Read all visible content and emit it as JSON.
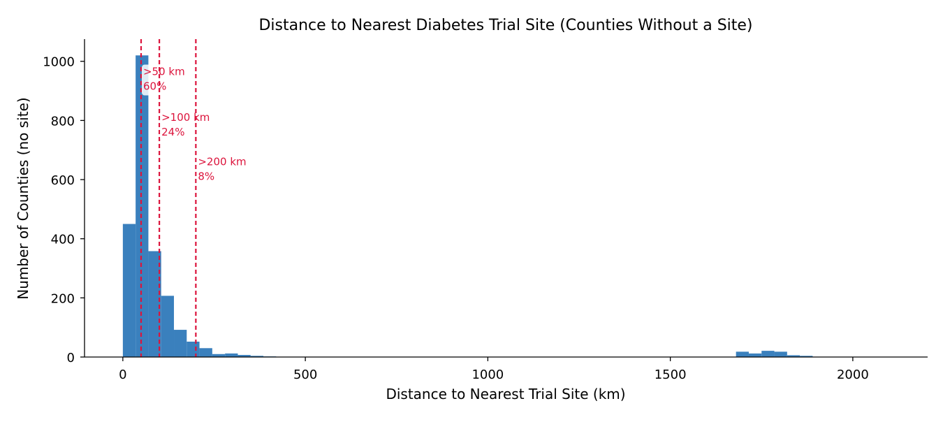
{
  "chart_data": {
    "type": "bar",
    "title": "Distance to Nearest Diabetes Trial Site (Counties Without a Site)",
    "xlabel": "Distance to Nearest Trial Site (km)",
    "ylabel": "Number of Counties (no site)",
    "xlim": [
      -105,
      2205
    ],
    "ylim": [
      0,
      1075
    ],
    "xticks": [
      0,
      500,
      1000,
      1500,
      2000
    ],
    "yticks": [
      0,
      200,
      400,
      600,
      800,
      1000
    ],
    "bin_width": 35,
    "bins": [
      {
        "start": 0,
        "count": 450
      },
      {
        "start": 35,
        "count": 1020
      },
      {
        "start": 70,
        "count": 358
      },
      {
        "start": 105,
        "count": 207
      },
      {
        "start": 140,
        "count": 92
      },
      {
        "start": 175,
        "count": 52
      },
      {
        "start": 210,
        "count": 30
      },
      {
        "start": 245,
        "count": 10
      },
      {
        "start": 280,
        "count": 12
      },
      {
        "start": 315,
        "count": 7
      },
      {
        "start": 350,
        "count": 4
      },
      {
        "start": 385,
        "count": 2
      },
      {
        "start": 420,
        "count": 1
      },
      {
        "start": 525,
        "count": 1
      },
      {
        "start": 770,
        "count": 1
      },
      {
        "start": 1680,
        "count": 18
      },
      {
        "start": 1715,
        "count": 12
      },
      {
        "start": 1750,
        "count": 21
      },
      {
        "start": 1785,
        "count": 18
      },
      {
        "start": 1820,
        "count": 6
      },
      {
        "start": 1855,
        "count": 4
      }
    ],
    "thresholds": [
      {
        "x": 50,
        "label": ">50 km",
        "pct": "60%",
        "label_y": 965
      },
      {
        "x": 100,
        "label": ">100 km",
        "pct": "24%",
        "label_y": 810
      },
      {
        "x": 200,
        "label": ">200 km",
        "pct": "8%",
        "label_y": 660
      }
    ],
    "bar_color": "#3a80bd",
    "threshold_color": "#dc143c",
    "grid": false,
    "legend": "none"
  }
}
